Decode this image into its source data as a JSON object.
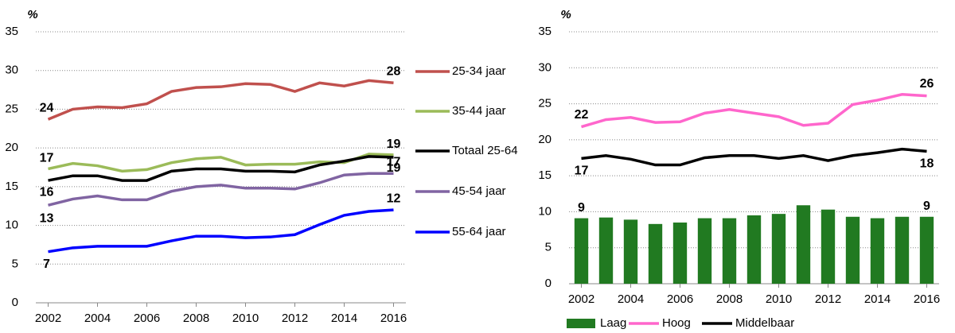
{
  "chart_data": [
    {
      "type": "line",
      "ylabel": "%",
      "x": [
        2002,
        2003,
        2004,
        2005,
        2006,
        2007,
        2008,
        2009,
        2010,
        2011,
        2012,
        2013,
        2014,
        2015,
        2016
      ],
      "xlim": [
        2001.5,
        2016.5
      ],
      "xticks": [
        2002,
        2004,
        2006,
        2008,
        2010,
        2012,
        2014,
        2016
      ],
      "ylim": [
        0,
        35
      ],
      "yticks": [
        0,
        5,
        10,
        15,
        20,
        25,
        30,
        35
      ],
      "grid": true,
      "legend": "right",
      "series": [
        {
          "name": "25-34 jaar",
          "color": "#c0504d",
          "label_color": "#c00000",
          "values": [
            23.7,
            25,
            25.3,
            25.2,
            25.7,
            27.3,
            27.8,
            27.9,
            28.3,
            28.2,
            27.3,
            28.4,
            28,
            28.7,
            28.4
          ],
          "value_labels": [
            "24",
            null,
            null,
            null,
            null,
            null,
            null,
            null,
            null,
            null,
            null,
            null,
            null,
            null,
            "28"
          ]
        },
        {
          "name": "35-44 jaar",
          "color": "#9bbb59",
          "label_color": "#77933c",
          "values": [
            17.3,
            18,
            17.7,
            17,
            17.2,
            18.1,
            18.6,
            18.8,
            17.8,
            17.9,
            17.9,
            18.2,
            18.1,
            19.2,
            19.1
          ],
          "value_labels": [
            "17",
            null,
            null,
            null,
            null,
            null,
            null,
            null,
            null,
            null,
            null,
            null,
            null,
            null,
            "19"
          ]
        },
        {
          "name": "Totaal 25-64",
          "color": "#000000",
          "label_color": "#000000",
          "values": [
            15.8,
            16.4,
            16.4,
            15.8,
            15.8,
            17,
            17.3,
            17.3,
            17,
            17,
            16.9,
            17.8,
            18.3,
            18.9,
            18.8
          ],
          "value_labels": [
            "16",
            null,
            null,
            null,
            null,
            null,
            null,
            null,
            null,
            null,
            null,
            null,
            null,
            null,
            "19"
          ]
        },
        {
          "name": "45-54 jaar",
          "color": "#8064a2",
          "label_color": "#7030a0",
          "values": [
            12.6,
            13.4,
            13.8,
            13.3,
            13.3,
            14.4,
            15,
            15.2,
            14.8,
            14.8,
            14.7,
            15.5,
            16.5,
            16.7,
            16.7
          ],
          "value_labels": [
            "13",
            null,
            null,
            null,
            null,
            null,
            null,
            null,
            null,
            null,
            null,
            null,
            null,
            null,
            "17"
          ]
        },
        {
          "name": "55-64 jaar",
          "color": "#0000ff",
          "label_color": "#0000ff",
          "values": [
            6.6,
            7.1,
            7.3,
            7.3,
            7.3,
            8,
            8.6,
            8.6,
            8.4,
            8.5,
            8.8,
            10.1,
            11.3,
            11.8,
            12
          ],
          "value_labels": [
            "7",
            null,
            null,
            null,
            null,
            null,
            null,
            null,
            null,
            null,
            null,
            null,
            null,
            null,
            "12"
          ]
        }
      ]
    },
    {
      "type": "combo",
      "ylabel": "%",
      "x": [
        2002,
        2003,
        2004,
        2005,
        2006,
        2007,
        2008,
        2009,
        2010,
        2011,
        2012,
        2013,
        2014,
        2015,
        2016
      ],
      "xlim": [
        2001.5,
        2016.5
      ],
      "xticks": [
        2002,
        2004,
        2006,
        2008,
        2010,
        2012,
        2014,
        2016
      ],
      "ylim": [
        0,
        35
      ],
      "yticks": [
        0,
        5,
        10,
        15,
        20,
        25,
        30,
        35
      ],
      "grid": true,
      "legend": "bottom",
      "series": [
        {
          "name": "Laag",
          "type": "bar",
          "color": "#217a21",
          "label_color": "#1e8c1e",
          "values": [
            9.1,
            9.2,
            8.9,
            8.3,
            8.5,
            9.1,
            9.1,
            9.5,
            9.7,
            10.9,
            10.3,
            9.3,
            9.1,
            9.3,
            9.3
          ],
          "value_labels": [
            "9",
            null,
            null,
            null,
            null,
            null,
            null,
            null,
            null,
            null,
            null,
            null,
            null,
            null,
            "9"
          ]
        },
        {
          "name": "Hoog",
          "type": "line",
          "color": "#ff66cc",
          "label_color": "#ff66cc",
          "values": [
            21.8,
            22.8,
            23.1,
            22.4,
            22.5,
            23.7,
            24.2,
            23.7,
            23.2,
            22,
            22.3,
            24.9,
            25.5,
            26.3,
            26.1
          ],
          "value_labels": [
            "22",
            null,
            null,
            null,
            null,
            null,
            null,
            null,
            null,
            null,
            null,
            null,
            null,
            null,
            "26"
          ]
        },
        {
          "name": "Middelbaar",
          "type": "line",
          "color": "#000000",
          "label_color": "#000000",
          "values": [
            17.4,
            17.8,
            17.3,
            16.5,
            16.5,
            17.5,
            17.8,
            17.8,
            17.4,
            17.8,
            17.1,
            17.8,
            18.2,
            18.7,
            18.4
          ],
          "value_labels": [
            "17",
            null,
            null,
            null,
            null,
            null,
            null,
            null,
            null,
            null,
            null,
            null,
            null,
            null,
            "18"
          ]
        }
      ]
    }
  ]
}
